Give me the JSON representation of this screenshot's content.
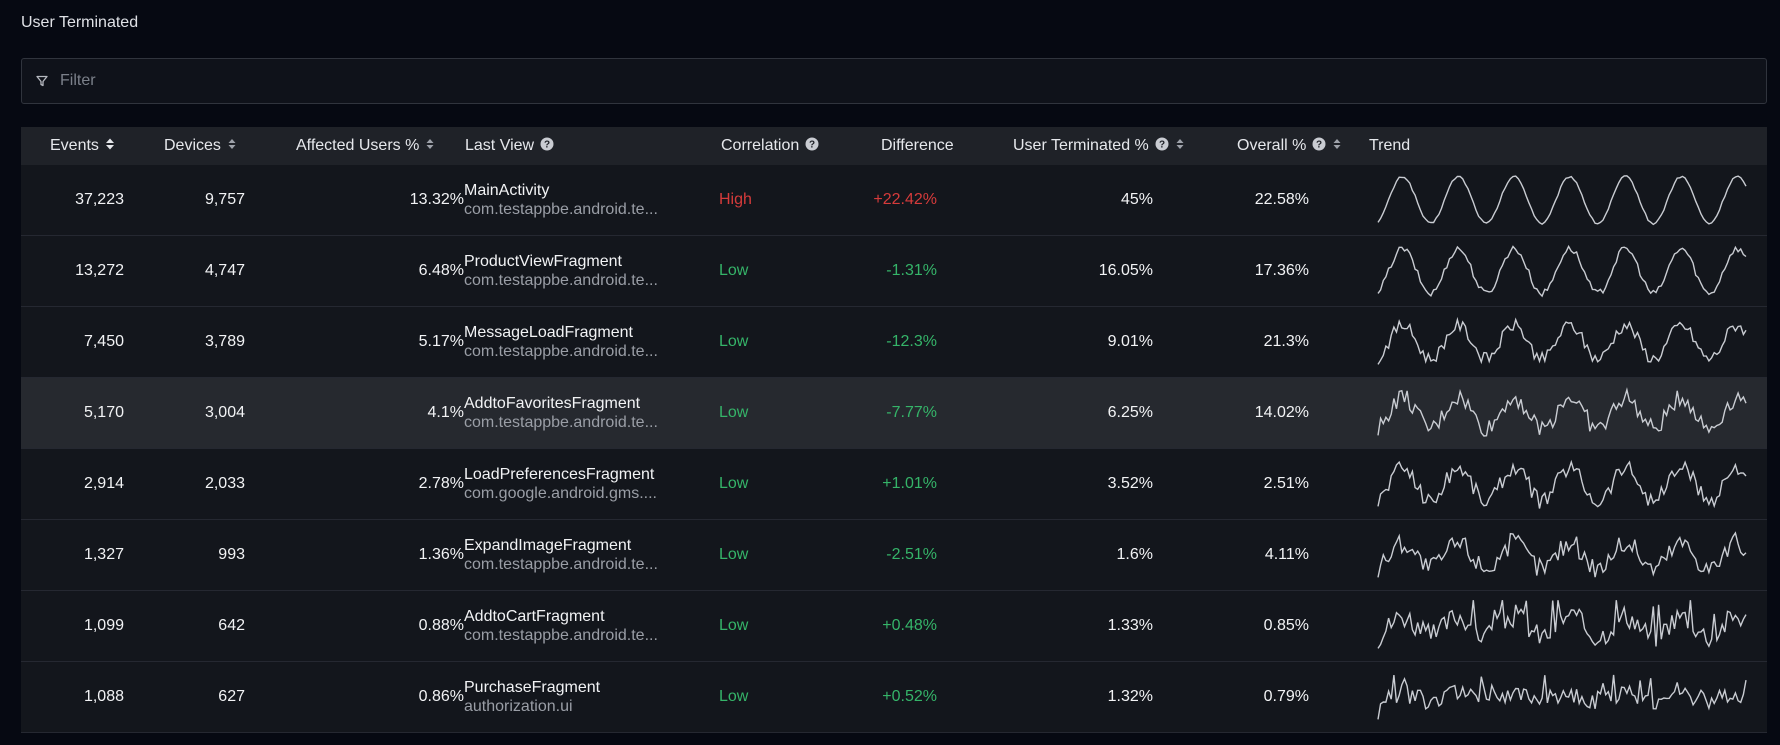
{
  "page": {
    "title": "User Terminated"
  },
  "filter": {
    "placeholder": "Filter",
    "value": "",
    "icon": "filter-icon"
  },
  "columns": {
    "events": "Events",
    "devices": "Devices",
    "affected": "Affected Users %",
    "last_view": "Last View",
    "correlation": "Correlation",
    "difference": "Difference",
    "user_terminated": "User Terminated %",
    "overall": "Overall %",
    "trend": "Trend"
  },
  "colors": {
    "high": "#d63b3b",
    "low": "#35b469",
    "trend_line": "#c9ccd2"
  },
  "rows": [
    {
      "events": "37,223",
      "devices": "9,757",
      "affected": "13.32%",
      "view_name": "MainActivity",
      "view_pkg": "com.testappbe.android.te...",
      "correlation": "High",
      "difference": "+22.42%",
      "user_terminated": "45%",
      "overall": "22.58%",
      "trend_style": "smooth"
    },
    {
      "events": "13,272",
      "devices": "4,747",
      "affected": "6.48%",
      "view_name": "ProductViewFragment",
      "view_pkg": "com.testappbe.android.te...",
      "correlation": "Low",
      "difference": "-1.31%",
      "user_terminated": "16.05%",
      "overall": "17.36%",
      "trend_style": "smooth-noisy"
    },
    {
      "events": "7,450",
      "devices": "3,789",
      "affected": "5.17%",
      "view_name": "MessageLoadFragment",
      "view_pkg": "com.testappbe.android.te...",
      "correlation": "Low",
      "difference": "-12.3%",
      "user_terminated": "9.01%",
      "overall": "21.3%",
      "trend_style": "wave-noisy"
    },
    {
      "events": "5,170",
      "devices": "3,004",
      "affected": "4.1%",
      "view_name": "AddtoFavoritesFragment",
      "view_pkg": "com.testappbe.android.te...",
      "correlation": "Low",
      "difference": "-7.77%",
      "user_terminated": "6.25%",
      "overall": "14.02%",
      "trend_style": "jagged",
      "highlight": true
    },
    {
      "events": "2,914",
      "devices": "2,033",
      "affected": "2.78%",
      "view_name": "LoadPreferencesFragment",
      "view_pkg": "com.google.android.gms....",
      "correlation": "Low",
      "difference": "+1.01%",
      "user_terminated": "3.52%",
      "overall": "2.51%",
      "trend_style": "wave-jagged"
    },
    {
      "events": "1,327",
      "devices": "993",
      "affected": "1.36%",
      "view_name": "ExpandImageFragment",
      "view_pkg": "com.testappbe.android.te...",
      "correlation": "Low",
      "difference": "-2.51%",
      "user_terminated": "1.6%",
      "overall": "4.11%",
      "trend_style": "noisy"
    },
    {
      "events": "1,099",
      "devices": "642",
      "affected": "0.88%",
      "view_name": "AddtoCartFragment",
      "view_pkg": "com.testappbe.android.te...",
      "correlation": "Low",
      "difference": "+0.48%",
      "user_terminated": "1.33%",
      "overall": "0.85%",
      "trend_style": "spiky"
    },
    {
      "events": "1,088",
      "devices": "627",
      "affected": "0.86%",
      "view_name": "PurchaseFragment",
      "view_pkg": "authorization.ui",
      "correlation": "Low",
      "difference": "+0.52%",
      "user_terminated": "1.32%",
      "overall": "0.79%",
      "trend_style": "flat-noisy"
    }
  ]
}
